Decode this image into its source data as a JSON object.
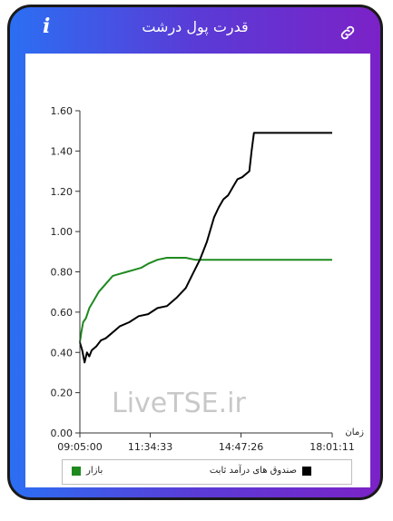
{
  "header": {
    "title": "قدرت پول درشت",
    "info_label": "i",
    "info_icon": "info-icon",
    "link_icon": "link-icon"
  },
  "watermark": "LiveTSE.ir",
  "chart_data": {
    "type": "line",
    "x_axis_label": "زمان",
    "x_ticks": [
      "09:05:00",
      "11:34:33",
      "14:47:26",
      "18:01:11"
    ],
    "y_ticks": [
      "0.00",
      "0.20",
      "0.40",
      "0.60",
      "0.80",
      "1.00",
      "1.20",
      "1.40",
      "1.60"
    ],
    "ylim": [
      0,
      1.6
    ],
    "grid": false,
    "legend_position": "bottom",
    "series": [
      {
        "name": "صندوق های درآمد ثابت",
        "color": "#000000",
        "x": [
          "09:05:00",
          "09:10:00",
          "09:15:00",
          "09:20:00",
          "09:25:00",
          "09:30:00",
          "09:40:00",
          "09:50:00",
          "10:00:00",
          "10:10:00",
          "10:30:00",
          "10:50:00",
          "11:10:00",
          "11:30:00",
          "11:50:00",
          "12:10:00",
          "12:30:00",
          "12:50:00",
          "13:05:00",
          "13:20:00",
          "13:35:00",
          "13:50:00",
          "14:00:00",
          "14:10:00",
          "14:20:00",
          "14:30:00",
          "14:40:00",
          "14:50:00",
          "15:05:00",
          "15:10:00",
          "15:15:00",
          "16:30:00",
          "18:01:11"
        ],
        "values": [
          0.45,
          0.41,
          0.35,
          0.4,
          0.38,
          0.41,
          0.43,
          0.46,
          0.47,
          0.49,
          0.53,
          0.55,
          0.58,
          0.59,
          0.62,
          0.63,
          0.67,
          0.72,
          0.79,
          0.86,
          0.95,
          1.07,
          1.12,
          1.16,
          1.18,
          1.22,
          1.26,
          1.27,
          1.3,
          1.4,
          1.49,
          1.49,
          1.49
        ]
      },
      {
        "name": "بازار",
        "color": "#1e8a1e",
        "x": [
          "09:05:00",
          "09:08:00",
          "09:12:00",
          "09:18:00",
          "09:25:00",
          "09:35:00",
          "09:45:00",
          "10:00:00",
          "10:15:00",
          "10:30:00",
          "10:45:00",
          "11:00:00",
          "11:15:00",
          "11:30:00",
          "11:50:00",
          "12:10:00",
          "12:30:00",
          "12:50:00",
          "13:10:00",
          "13:30:00",
          "14:00:00",
          "15:00:00",
          "16:30:00",
          "18:01:11"
        ],
        "values": [
          0.45,
          0.5,
          0.55,
          0.57,
          0.62,
          0.66,
          0.7,
          0.74,
          0.78,
          0.79,
          0.8,
          0.81,
          0.82,
          0.84,
          0.86,
          0.87,
          0.87,
          0.87,
          0.86,
          0.86,
          0.86,
          0.86,
          0.86,
          0.86
        ]
      }
    ]
  }
}
